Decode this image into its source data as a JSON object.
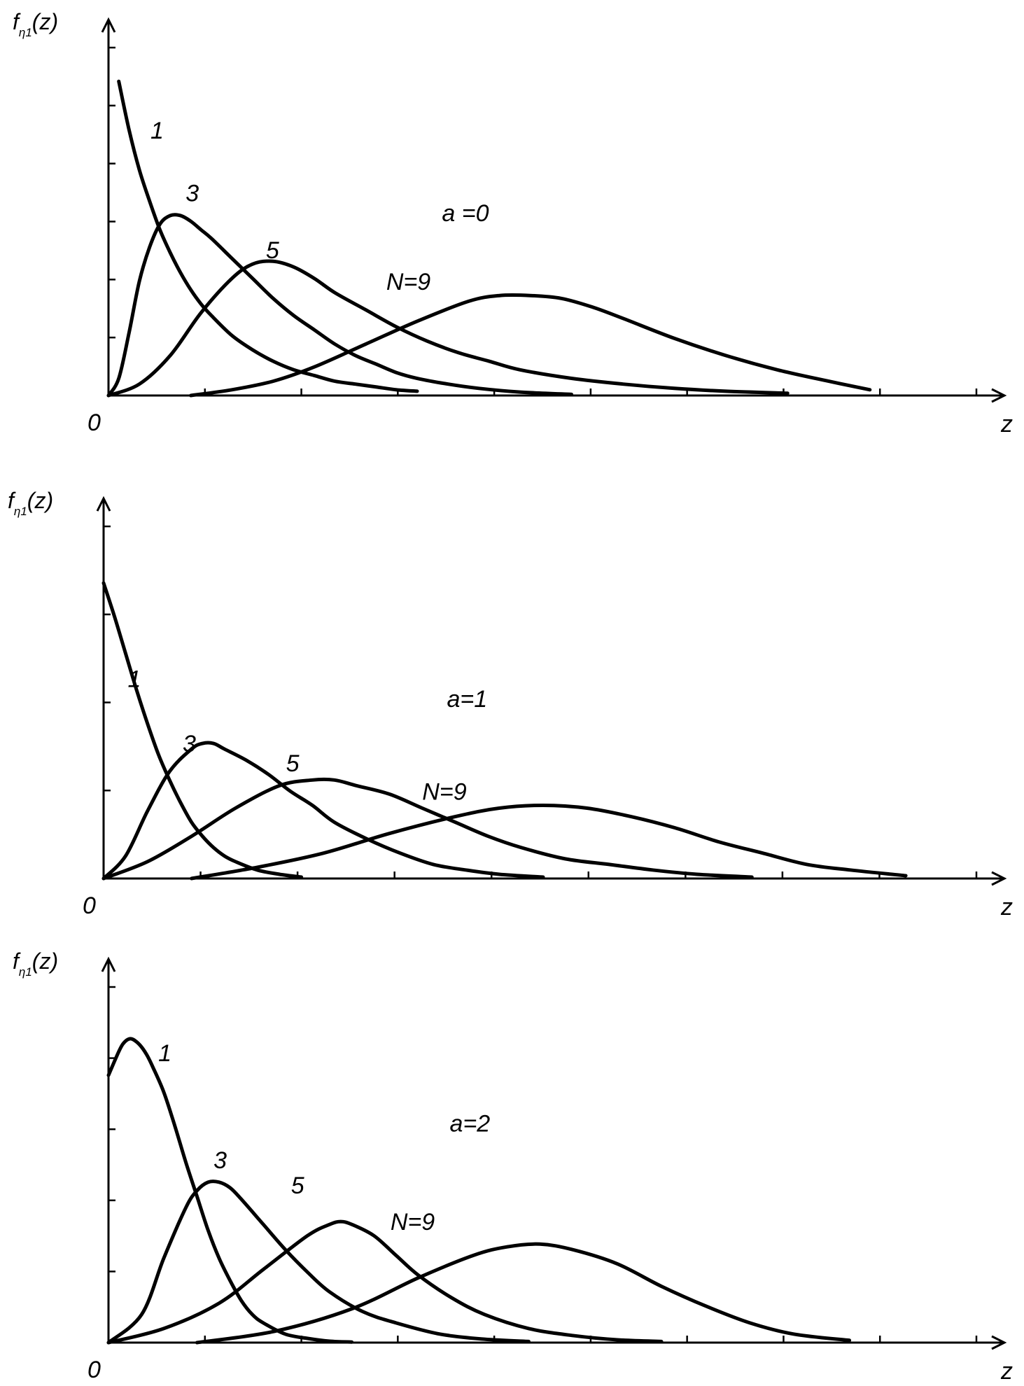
{
  "figure": {
    "y_symbol": "f",
    "y_subscript": "η1",
    "y_arg": "(z)",
    "x_label": "z",
    "origin_label": "0"
  },
  "chart_data": [
    {
      "type": "line",
      "param_label": "a =0",
      "xlabel": "z",
      "ylabel": "fη1(z)",
      "xlim": [
        0,
        7.5
      ],
      "ylim": [
        0,
        1.2
      ],
      "series": [
        {
          "name": "1",
          "label": "1",
          "x": [
            0.1,
            0.2,
            0.3,
            0.4,
            0.5,
            0.6,
            0.7,
            0.8,
            0.9,
            1.0,
            1.2,
            1.4,
            1.6,
            1.8,
            2.0,
            2.2,
            2.4,
            2.6,
            2.8,
            3.0
          ],
          "y": [
            1.1,
            0.93,
            0.79,
            0.68,
            0.58,
            0.5,
            0.43,
            0.37,
            0.32,
            0.28,
            0.21,
            0.16,
            0.12,
            0.09,
            0.07,
            0.05,
            0.04,
            0.03,
            0.02,
            0.015
          ]
        },
        {
          "name": "3",
          "label": "3",
          "x": [
            0.0,
            0.1,
            0.2,
            0.3,
            0.4,
            0.5,
            0.6,
            0.7,
            0.8,
            0.9,
            1.0,
            1.2,
            1.4,
            1.6,
            1.8,
            2.0,
            2.2,
            2.4,
            2.6,
            2.8,
            3.0,
            3.3,
            3.6,
            4.0,
            4.5
          ],
          "y": [
            0.0,
            0.06,
            0.22,
            0.4,
            0.52,
            0.6,
            0.63,
            0.63,
            0.61,
            0.58,
            0.55,
            0.48,
            0.41,
            0.34,
            0.28,
            0.23,
            0.18,
            0.14,
            0.11,
            0.08,
            0.06,
            0.04,
            0.025,
            0.012,
            0.004
          ]
        },
        {
          "name": "5",
          "label": "5",
          "x": [
            0.0,
            0.3,
            0.6,
            0.9,
            1.2,
            1.4,
            1.6,
            1.8,
            2.0,
            2.2,
            2.5,
            2.8,
            3.1,
            3.4,
            3.7,
            4.0,
            4.5,
            5.0,
            5.5,
            6.0,
            6.6
          ],
          "y": [
            0.0,
            0.04,
            0.14,
            0.29,
            0.41,
            0.46,
            0.47,
            0.45,
            0.41,
            0.36,
            0.3,
            0.24,
            0.19,
            0.15,
            0.12,
            0.09,
            0.06,
            0.04,
            0.025,
            0.015,
            0.008
          ]
        },
        {
          "name": "N=9",
          "label": "N=9",
          "x": [
            0.8,
            1.2,
            1.6,
            2.0,
            2.5,
            3.0,
            3.5,
            3.8,
            4.1,
            4.4,
            4.7,
            5.0,
            5.5,
            6.0,
            6.5,
            7.0,
            7.4
          ],
          "y": [
            0.0,
            0.02,
            0.05,
            0.1,
            0.18,
            0.26,
            0.33,
            0.35,
            0.35,
            0.34,
            0.31,
            0.27,
            0.2,
            0.14,
            0.09,
            0.05,
            0.02
          ]
        }
      ],
      "annotations": [
        "1",
        "3",
        "5",
        "N=9",
        "a =0"
      ]
    },
    {
      "type": "line",
      "param_label": "a=1",
      "xlabel": "z",
      "ylabel": "fη1(z)",
      "xlim": [
        0,
        7.5
      ],
      "ylim": [
        0,
        1.2
      ],
      "series": [
        {
          "name": "1",
          "label": "1",
          "x": [
            0.0,
            0.1,
            0.2,
            0.3,
            0.4,
            0.5,
            0.6,
            0.7,
            0.8,
            0.9,
            1.0,
            1.1,
            1.2,
            1.4,
            1.6,
            1.8
          ],
          "y": [
            1.05,
            0.93,
            0.8,
            0.67,
            0.55,
            0.44,
            0.35,
            0.27,
            0.2,
            0.15,
            0.11,
            0.08,
            0.06,
            0.03,
            0.015,
            0.005
          ]
        },
        {
          "name": "3",
          "label": "3",
          "x": [
            0.0,
            0.2,
            0.4,
            0.6,
            0.8,
            0.9,
            1.0,
            1.1,
            1.3,
            1.5,
            1.7,
            1.9,
            2.1,
            2.4,
            2.7,
            3.0,
            3.3,
            3.6,
            4.0
          ],
          "y": [
            0.0,
            0.08,
            0.24,
            0.38,
            0.46,
            0.48,
            0.48,
            0.46,
            0.42,
            0.37,
            0.31,
            0.26,
            0.2,
            0.14,
            0.09,
            0.05,
            0.03,
            0.015,
            0.005
          ]
        },
        {
          "name": "5",
          "label": "5",
          "x": [
            0.0,
            0.4,
            0.8,
            1.2,
            1.6,
            1.9,
            2.1,
            2.3,
            2.6,
            2.9,
            3.2,
            3.5,
            3.8,
            4.2,
            4.6,
            5.0,
            5.4,
            5.9
          ],
          "y": [
            0.0,
            0.06,
            0.15,
            0.25,
            0.33,
            0.35,
            0.35,
            0.33,
            0.3,
            0.25,
            0.2,
            0.15,
            0.11,
            0.07,
            0.05,
            0.03,
            0.015,
            0.005
          ]
        },
        {
          "name": "N=9",
          "label": "N=9",
          "x": [
            0.8,
            1.4,
            2.0,
            2.6,
            3.2,
            3.6,
            4.0,
            4.4,
            4.8,
            5.2,
            5.6,
            6.0,
            6.4,
            6.8,
            7.3
          ],
          "y": [
            0.0,
            0.04,
            0.09,
            0.16,
            0.22,
            0.25,
            0.26,
            0.25,
            0.22,
            0.18,
            0.13,
            0.09,
            0.05,
            0.03,
            0.01
          ]
        }
      ],
      "annotations": [
        "1",
        "3",
        "5",
        "N=9",
        "a=1"
      ]
    },
    {
      "type": "line",
      "param_label": "a=2",
      "xlabel": "z",
      "ylabel": "fη1(z)",
      "xlim": [
        0,
        7.5
      ],
      "ylim": [
        0,
        1.2
      ],
      "series": [
        {
          "name": "1",
          "label": "1",
          "x": [
            0.0,
            0.1,
            0.15,
            0.2,
            0.25,
            0.3,
            0.35,
            0.4,
            0.5,
            0.6,
            0.7,
            0.8,
            0.9,
            1.0,
            1.1,
            1.2,
            1.3,
            1.4,
            1.6,
            1.8,
            2.0,
            2.2
          ],
          "y": [
            0.95,
            1.04,
            1.07,
            1.08,
            1.07,
            1.05,
            1.02,
            0.98,
            0.89,
            0.77,
            0.64,
            0.52,
            0.4,
            0.3,
            0.22,
            0.15,
            0.1,
            0.07,
            0.03,
            0.015,
            0.005,
            0.002
          ]
        },
        {
          "name": "3",
          "label": "3",
          "x": [
            0.0,
            0.3,
            0.5,
            0.7,
            0.8,
            0.9,
            1.0,
            1.1,
            1.2,
            1.4,
            1.6,
            1.8,
            2.0,
            2.3,
            2.6,
            3.0,
            3.4,
            3.8
          ],
          "y": [
            0.0,
            0.1,
            0.3,
            0.48,
            0.54,
            0.57,
            0.57,
            0.55,
            0.51,
            0.42,
            0.33,
            0.25,
            0.18,
            0.11,
            0.07,
            0.03,
            0.012,
            0.004
          ]
        },
        {
          "name": "5",
          "label": "5",
          "x": [
            0.0,
            0.5,
            1.0,
            1.4,
            1.8,
            2.0,
            2.1,
            2.2,
            2.4,
            2.6,
            2.8,
            3.1,
            3.4,
            3.8,
            4.2,
            4.6,
            5.0
          ],
          "y": [
            0.0,
            0.05,
            0.14,
            0.26,
            0.38,
            0.42,
            0.43,
            0.42,
            0.38,
            0.31,
            0.24,
            0.16,
            0.1,
            0.05,
            0.025,
            0.01,
            0.004
          ]
        },
        {
          "name": "N=9",
          "label": "N=9",
          "x": [
            0.8,
            1.5,
            2.2,
            2.8,
            3.3,
            3.6,
            3.9,
            4.2,
            4.6,
            5.0,
            5.4,
            5.8,
            6.2,
            6.7
          ],
          "y": [
            0.0,
            0.04,
            0.12,
            0.23,
            0.31,
            0.34,
            0.35,
            0.33,
            0.28,
            0.2,
            0.13,
            0.07,
            0.03,
            0.008
          ]
        }
      ],
      "annotations": [
        "1",
        "3",
        "5",
        "N=9",
        "a=2"
      ]
    }
  ]
}
